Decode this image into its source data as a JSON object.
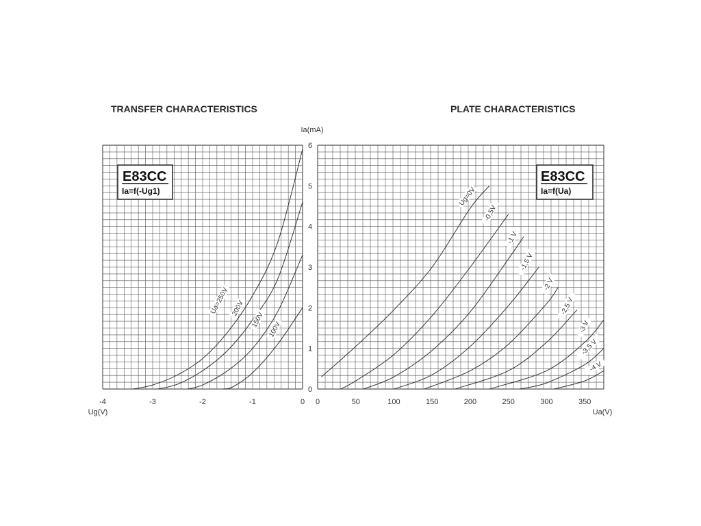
{
  "transfer": {
    "title": "TRANSFER CHARACTERISTICS",
    "tube": "E83CC",
    "formula": "Ia=f(-Ug1)"
  },
  "plate": {
    "title": "PLATE CHARACTERISTICS",
    "tube": "E83CC",
    "formula": "Ia=f(Ua)"
  },
  "chart_data": [
    {
      "type": "line",
      "title": "TRANSFER CHARACTERISTICS",
      "xlabel": "Ug(V)",
      "ylabel": "Ia(mA)",
      "xlim": [
        -4,
        0
      ],
      "ylim": [
        0,
        6
      ],
      "x_ticks": [
        "-4",
        "-3",
        "-2",
        "-1",
        "0"
      ],
      "y_ticks": [
        "0",
        "1",
        "2",
        "3",
        "4",
        "5",
        "6"
      ],
      "grid": true,
      "series": [
        {
          "name": "Ua=250V",
          "points": [
            [
              -3.4,
              0.0
            ],
            [
              -3.0,
              0.1
            ],
            [
              -2.5,
              0.35
            ],
            [
              -2.0,
              0.75
            ],
            [
              -1.5,
              1.4
            ],
            [
              -1.0,
              2.3
            ],
            [
              -0.5,
              3.6
            ],
            [
              0.0,
              5.9
            ]
          ]
        },
        {
          "name": "200V",
          "points": [
            [
              -2.9,
              0.0
            ],
            [
              -2.5,
              0.12
            ],
            [
              -2.0,
              0.45
            ],
            [
              -1.5,
              0.95
            ],
            [
              -1.0,
              1.7
            ],
            [
              -0.5,
              2.7
            ],
            [
              0.0,
              4.6
            ]
          ]
        },
        {
          "name": "150V",
          "points": [
            [
              -2.3,
              0.0
            ],
            [
              -2.0,
              0.1
            ],
            [
              -1.5,
              0.45
            ],
            [
              -1.0,
              1.0
            ],
            [
              -0.5,
              1.9
            ],
            [
              0.0,
              3.3
            ]
          ]
        },
        {
          "name": "100V",
          "points": [
            [
              -1.6,
              0.0
            ],
            [
              -1.4,
              0.05
            ],
            [
              -1.0,
              0.4
            ],
            [
              -0.5,
              1.1
            ],
            [
              0.0,
              2.0
            ]
          ]
        }
      ]
    },
    {
      "type": "line",
      "title": "PLATE CHARACTERISTICS",
      "xlabel": "Ua(V)",
      "ylabel": "Ia(mA)",
      "xlim": [
        0,
        375
      ],
      "ylim": [
        0,
        6
      ],
      "x_ticks": [
        "0",
        "50",
        "100",
        "150",
        "200",
        "250",
        "300",
        "350"
      ],
      "y_ticks": [
        "0",
        "1",
        "2",
        "3",
        "4",
        "5",
        "6"
      ],
      "grid": true,
      "series": [
        {
          "name": "Ug=0V",
          "points": [
            [
              5,
              0.3
            ],
            [
              50,
              1.05
            ],
            [
              100,
              1.95
            ],
            [
              150,
              3.0
            ],
            [
              200,
              4.45
            ],
            [
              225,
              5.0
            ]
          ]
        },
        {
          "name": "-0,5V",
          "points": [
            [
              30,
              0.0
            ],
            [
              50,
              0.2
            ],
            [
              100,
              0.85
            ],
            [
              150,
              1.8
            ],
            [
              200,
              3.0
            ],
            [
              250,
              4.3
            ]
          ]
        },
        {
          "name": "-1 V",
          "points": [
            [
              60,
              0.0
            ],
            [
              100,
              0.3
            ],
            [
              150,
              0.95
            ],
            [
              200,
              1.9
            ],
            [
              250,
              3.2
            ],
            [
              270,
              3.75
            ]
          ]
        },
        {
          "name": "-1,5 V",
          "points": [
            [
              100,
              0.0
            ],
            [
              150,
              0.35
            ],
            [
              200,
              1.05
            ],
            [
              250,
              2.05
            ],
            [
              290,
              3.0
            ]
          ]
        },
        {
          "name": "-2 V",
          "points": [
            [
              140,
              0.0
            ],
            [
              200,
              0.45
            ],
            [
              250,
              1.1
            ],
            [
              300,
              2.1
            ],
            [
              315,
              2.5
            ]
          ]
        },
        {
          "name": "-2,5 V",
          "points": [
            [
              180,
              0.0
            ],
            [
              250,
              0.45
            ],
            [
              300,
              1.15
            ],
            [
              340,
              1.95
            ]
          ]
        },
        {
          "name": "-3 V",
          "points": [
            [
              225,
              0.0
            ],
            [
              300,
              0.45
            ],
            [
              350,
              1.15
            ],
            [
              375,
              1.7
            ]
          ]
        },
        {
          "name": "-3,5 V",
          "points": [
            [
              265,
              0.0
            ],
            [
              300,
              0.15
            ],
            [
              350,
              0.6
            ],
            [
              375,
              1.0
            ]
          ]
        },
        {
          "name": "-4 V",
          "points": [
            [
              310,
              0.0
            ],
            [
              350,
              0.2
            ],
            [
              375,
              0.45
            ]
          ]
        }
      ]
    }
  ]
}
